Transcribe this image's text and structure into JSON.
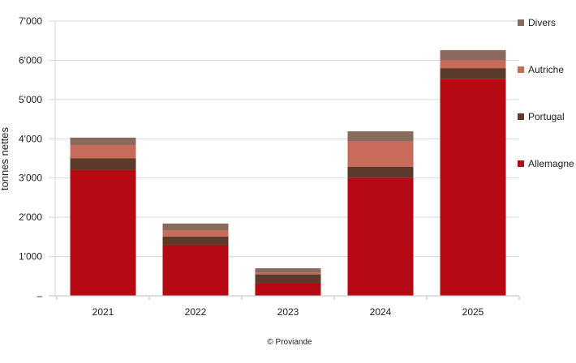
{
  "chart_data": {
    "type": "bar",
    "stacked": true,
    "title": "",
    "xlabel": "",
    "ylabel": "tonnes nettes",
    "ylim": [
      0,
      7000
    ],
    "yticks": [
      "–",
      "1'000",
      "2'000",
      "3'000",
      "4'000",
      "5'000",
      "6'000",
      "7'000"
    ],
    "grid": true,
    "legend_position": "right",
    "categories": [
      "2021",
      "2022",
      "2023",
      "2024",
      "2025"
    ],
    "series": [
      {
        "name": "Allemagne",
        "color": "#b50a14",
        "values": [
          3210,
          1290,
          310,
          3000,
          5530
        ]
      },
      {
        "name": "Portugal",
        "color": "#5b3a29",
        "values": [
          290,
          220,
          235,
          290,
          270
        ]
      },
      {
        "name": "Autriche",
        "color": "#c86b5a",
        "values": [
          340,
          150,
          45,
          640,
          200
        ]
      },
      {
        "name": "Divers",
        "color": "#8a6a5c",
        "values": [
          190,
          180,
          110,
          260,
          260
        ]
      }
    ],
    "legend_order": [
      "Divers",
      "Autriche",
      "Portugal",
      "Allemagne"
    ],
    "source": "© Proviande"
  }
}
